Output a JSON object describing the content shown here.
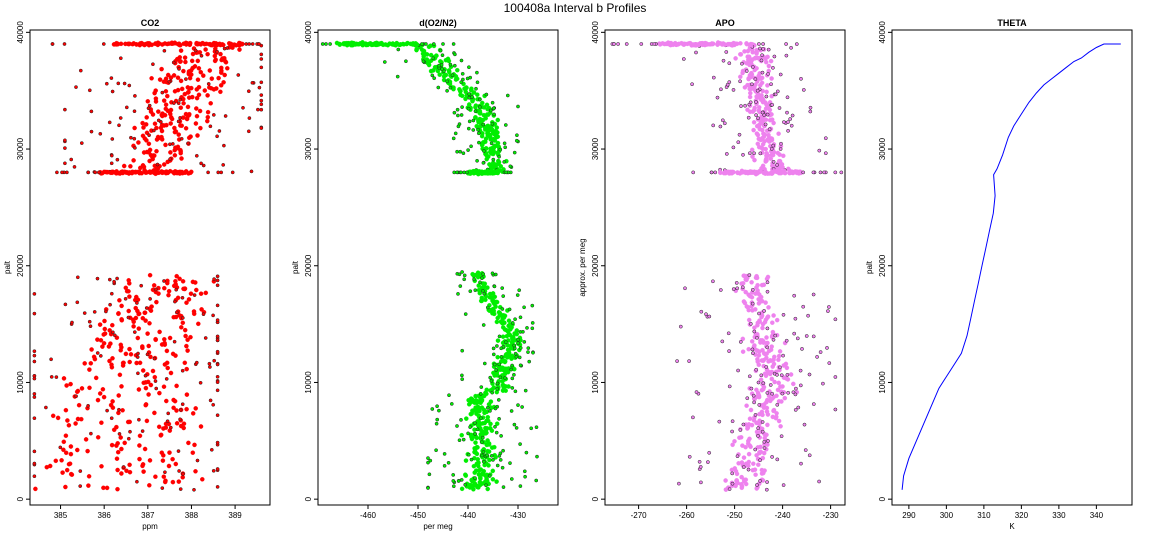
{
  "chart_data": {
    "type": "scatter",
    "title": "100408a   Interval b Profiles",
    "panels": [
      {
        "title": "CO2",
        "xlabel": "ppm",
        "ylabel": "palt",
        "xlim": [
          384.3,
          389.8
        ],
        "ylim": [
          -500,
          40200
        ],
        "xticks": [
          385,
          386,
          387,
          388,
          389
        ],
        "yticks": [
          0,
          10000,
          20000,
          30000,
          40000
        ],
        "color": "#ff0000",
        "kind": "points",
        "bands": [
          {
            "y0": 800,
            "y1": 19200,
            "segments": [
              [
                0,
                384.4,
                388.6
              ],
              [
                10000,
                385.2,
                387.9
              ],
              [
                19200,
                386.6,
                388.4
              ]
            ],
            "spread": 0.35,
            "n": 300,
            "outer": [
              384.4,
              388.6
            ]
          },
          {
            "y0": 28000,
            "y1": 39000,
            "segments": [
              [
                28000,
                386.3,
                387.6
              ],
              [
                39000,
                387.8,
                389.1
              ]
            ],
            "spread": 0.45,
            "n": 220,
            "outer": [
              385.1,
              389.6
            ]
          }
        ],
        "edges": [
          {
            "y": 28000,
            "x0": 385.9,
            "x1": 388.0
          },
          {
            "y": 39000,
            "x0": 386.2,
            "x1": 389.2
          }
        ]
      },
      {
        "title": "d(O2/N2)",
        "xlabel": "per meg",
        "ylabel": "palt",
        "xlim": [
          -470,
          -422
        ],
        "ylim": [
          -500,
          40200
        ],
        "xticks": [
          -460,
          -450,
          -440,
          -430
        ],
        "yticks": [
          0,
          10000,
          20000,
          30000,
          40000
        ],
        "color": "#00ee00",
        "kind": "points",
        "bands": [
          {
            "y0": 800,
            "y1": 9000,
            "segments": [
              [
                0,
                -439,
                -436
              ]
            ],
            "spread": 3.2,
            "n": 180,
            "outer": [
              -448,
              -425
            ]
          },
          {
            "y0": 9000,
            "y1": 19500,
            "segments": [
              [
                9000,
                -436,
                -433
              ],
              [
                14000,
                -432,
                -430
              ],
              [
                19500,
                -440,
                -438
              ]
            ],
            "spread": 2.4,
            "n": 190,
            "outer": [
              -448,
              -427
            ]
          },
          {
            "y0": 28000,
            "y1": 39000,
            "segments": [
              [
                28000,
                -436,
                -433
              ],
              [
                33000,
                -438,
                -435
              ],
              [
                39000,
                -452,
                -447
              ]
            ],
            "spread": 2.0,
            "n": 220,
            "outer": [
              -466,
              -430
            ]
          }
        ],
        "edges": [
          {
            "y": 28000,
            "x0": -440,
            "x1": -434
          },
          {
            "y": 39000,
            "x0": -467,
            "x1": -450
          }
        ]
      },
      {
        "title": "APO",
        "xlabel": "",
        "ylabel": "approx. per meg",
        "xlim": [
          -277,
          -227
        ],
        "ylim": [
          -500,
          40200
        ],
        "xticks": [
          -270,
          -260,
          -250,
          -240,
          -230
        ],
        "yticks": [
          0,
          10000,
          20000,
          30000,
          40000
        ],
        "color": "#ee82ee",
        "kind": "points",
        "bands": [
          {
            "y0": 800,
            "y1": 19200,
            "segments": [
              [
                0,
                -252,
                -246
              ],
              [
                10000,
                -245,
                -239
              ],
              [
                19200,
                -248,
                -245
              ]
            ],
            "spread": 3.6,
            "n": 300,
            "outer": [
              -263,
              -229
            ]
          },
          {
            "y0": 28000,
            "y1": 39000,
            "segments": [
              [
                28000,
                -244,
                -240
              ],
              [
                39000,
                -248,
                -245
              ]
            ],
            "spread": 3.4,
            "n": 220,
            "outer": [
              -262,
              -231
            ]
          }
        ],
        "edges": [
          {
            "y": 28000,
            "x0": -253,
            "x1": -236
          },
          {
            "y": 39000,
            "x0": -266,
            "x1": -246
          }
        ]
      },
      {
        "title": "THETA",
        "xlabel": "K",
        "ylabel": "palt",
        "xlim": [
          285.5,
          349.5
        ],
        "ylim": [
          -500,
          40200
        ],
        "xticks": [
          290,
          300,
          310,
          320,
          330,
          340
        ],
        "yticks": [
          0,
          10000,
          20000,
          30000,
          40000
        ],
        "color": "#0000ff",
        "kind": "line",
        "x": [
          288.2,
          288.6,
          290.0,
          292.0,
          294.0,
          296.0,
          298.0,
          300.0,
          302.0,
          304.0,
          305.5,
          306.5,
          307.5,
          308.5,
          309.5,
          310.5,
          311.5,
          312.5,
          313.0,
          312.6,
          313.5,
          315.0,
          316.5,
          318.0,
          320.0,
          322.0,
          324.0,
          326.0,
          328.0,
          330.0,
          332.0,
          334.0,
          336.0,
          338.0,
          340.0,
          342.0,
          344.0,
          346.5
        ],
        "y": [
          800,
          2000,
          3500,
          5000,
          6500,
          8000,
          9500,
          10500,
          11500,
          12500,
          14000,
          15500,
          17000,
          18500,
          20000,
          21500,
          23000,
          24500,
          26000,
          27800,
          28300,
          29500,
          31000,
          32000,
          33000,
          34000,
          34800,
          35500,
          36000,
          36500,
          37000,
          37500,
          37800,
          38300,
          38700,
          39000,
          39000,
          39000
        ]
      }
    ]
  }
}
